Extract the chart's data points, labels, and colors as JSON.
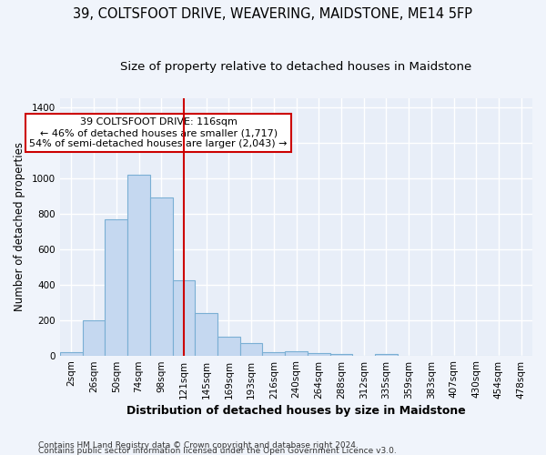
{
  "title": "39, COLTSFOOT DRIVE, WEAVERING, MAIDSTONE, ME14 5FP",
  "subtitle": "Size of property relative to detached houses in Maidstone",
  "xlabel": "Distribution of detached houses by size in Maidstone",
  "ylabel": "Number of detached properties",
  "footnote1": "Contains HM Land Registry data © Crown copyright and database right 2024.",
  "footnote2": "Contains public sector information licensed under the Open Government Licence v3.0.",
  "categories": [
    "2sqm",
    "26sqm",
    "50sqm",
    "74sqm",
    "98sqm",
    "121sqm",
    "145sqm",
    "169sqm",
    "193sqm",
    "216sqm",
    "240sqm",
    "264sqm",
    "288sqm",
    "312sqm",
    "335sqm",
    "359sqm",
    "383sqm",
    "407sqm",
    "430sqm",
    "454sqm",
    "478sqm"
  ],
  "values": [
    20,
    200,
    770,
    1020,
    890,
    425,
    240,
    107,
    68,
    20,
    25,
    15,
    8,
    0,
    10,
    0,
    0,
    0,
    0,
    0,
    0
  ],
  "bar_color": "#c5d8f0",
  "bar_edge_color": "#7aafd4",
  "vline_x_index": 5,
  "vline_color": "#cc0000",
  "annotation_text": "39 COLTSFOOT DRIVE: 116sqm\n← 46% of detached houses are smaller (1,717)\n54% of semi-detached houses are larger (2,043) →",
  "annotation_box_color": "#ffffff",
  "annotation_box_edge": "#cc0000",
  "ylim": [
    0,
    1450
  ],
  "yticks": [
    0,
    200,
    400,
    600,
    800,
    1000,
    1200,
    1400
  ],
  "fig_bg_color": "#f0f4fb",
  "axes_bg_color": "#e8eef8",
  "grid_color": "#ffffff",
  "title_fontsize": 10.5,
  "subtitle_fontsize": 9.5,
  "tick_fontsize": 7.5,
  "xlabel_fontsize": 9,
  "ylabel_fontsize": 8.5,
  "footnote_fontsize": 6.5
}
